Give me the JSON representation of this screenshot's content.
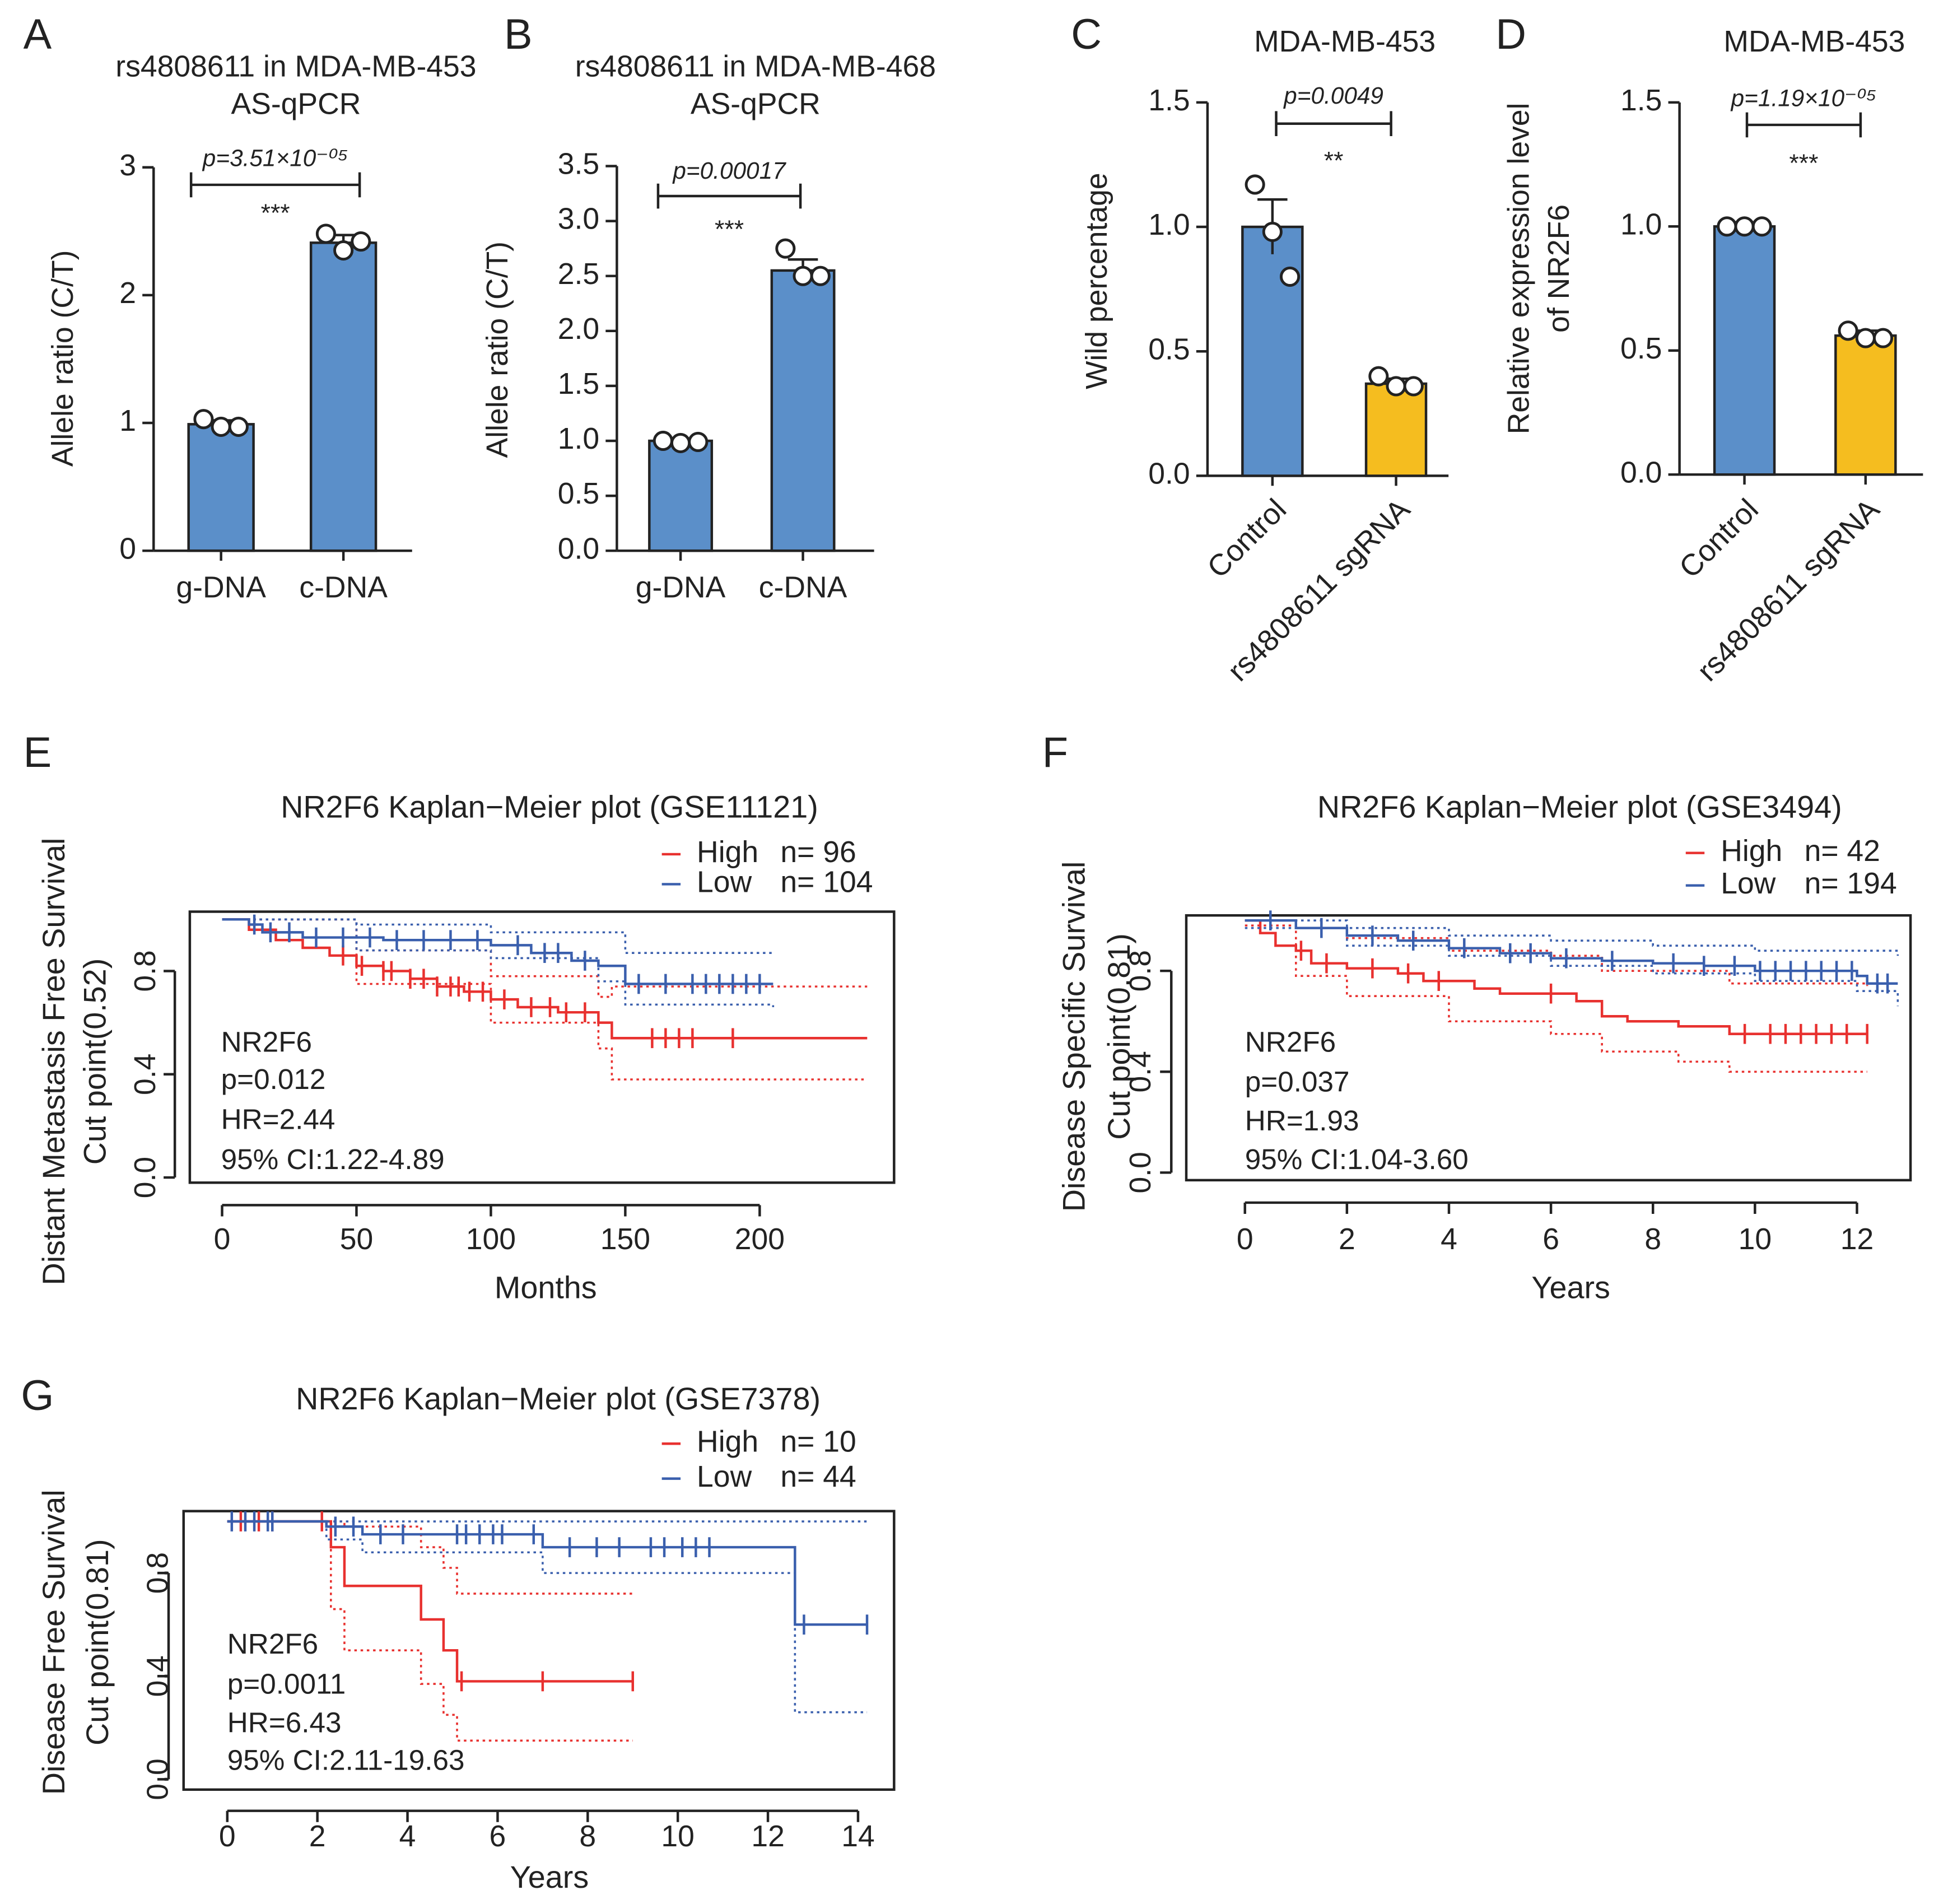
{
  "chart_data": [
    {
      "type": "bar",
      "panel": "A",
      "title": "rs4808611 in MDA-MB-453",
      "subtitle": "AS-qPCR",
      "ylabel": "Allele ratio (C/T)",
      "categories": [
        "g-DNA",
        "c-DNA"
      ],
      "values": [
        0.99,
        2.41
      ],
      "errors": [
        0.03,
        0.06
      ],
      "points": [
        [
          1.03,
          0.97,
          0.97
        ],
        [
          2.48,
          2.35,
          2.42
        ]
      ],
      "colors": [
        "#5b8fc9",
        "#5b8fc9"
      ],
      "ylim": [
        0,
        3
      ],
      "yticks": [
        0,
        1,
        2,
        3
      ],
      "p_label": "p=3.51×10⁻⁰⁵",
      "stars": "***"
    },
    {
      "type": "bar",
      "panel": "B",
      "title": "rs4808611 in MDA-MB-468",
      "subtitle": "AS-qPCR",
      "ylabel": "Allele ratio (C/T)",
      "categories": [
        "g-DNA",
        "c-DNA"
      ],
      "values": [
        1.0,
        2.55
      ],
      "errors": [
        0.02,
        0.1
      ],
      "points": [
        [
          1.0,
          0.98,
          0.99
        ],
        [
          2.75,
          2.5,
          2.5
        ]
      ],
      "colors": [
        "#5b8fc9",
        "#5b8fc9"
      ],
      "ylim": [
        0,
        3.5
      ],
      "yticks": [
        {
          "value": 0,
          "label": "0.0"
        },
        0.5,
        {
          "value": 1,
          "label": "1.0"
        },
        1.5,
        {
          "value": 2,
          "label": "2.0"
        },
        2.5,
        {
          "value": 3,
          "label": "3.0"
        },
        3.5
      ],
      "p_label": "p=0.00017",
      "stars": "***"
    },
    {
      "type": "bar",
      "panel": "C",
      "title": "MDA-MB-453",
      "ylabel": "Wild percentage",
      "categories": [
        "Control",
        "rs4808611 sgRNA"
      ],
      "values": [
        1.0,
        0.37
      ],
      "errors": [
        0.11,
        0.02
      ],
      "points": [
        [
          1.17,
          0.98,
          0.8
        ],
        [
          0.4,
          0.36,
          0.36
        ]
      ],
      "colors": [
        "#5b8fc9",
        "#f5bd1f"
      ],
      "ylim": [
        0,
        1.5
      ],
      "yticks": [
        {
          "value": 0,
          "label": "0.0"
        },
        0.5,
        {
          "value": 1,
          "label": "1.0"
        },
        1.5
      ],
      "p_label": "p=0.0049",
      "stars": "**"
    },
    {
      "type": "bar",
      "panel": "D",
      "title": "MDA-MB-453",
      "ylabel": [
        "Relative expression level",
        "of NR2F6"
      ],
      "categories": [
        "Control",
        "rs4808611 sgRNA"
      ],
      "values": [
        1.0,
        0.56
      ],
      "errors": [
        0.005,
        0.02
      ],
      "points": [
        [
          1.0,
          1.0,
          1.0
        ],
        [
          0.58,
          0.55,
          0.55
        ]
      ],
      "colors": [
        "#5b8fc9",
        "#f5bd1f"
      ],
      "ylim": [
        0,
        1.5
      ],
      "yticks": [
        {
          "value": 0,
          "label": "0.0"
        },
        0.5,
        {
          "value": 1,
          "label": "1.0"
        },
        1.5
      ],
      "p_label": "p=1.19×10⁻⁰⁵",
      "stars": "***"
    },
    {
      "type": "line",
      "panel": "E",
      "title": "NR2F6 Kaplan−Meier plot (GSE11121)",
      "ylabel": [
        "Distant Metastasis Free Survival",
        "Cut point(0.52)"
      ],
      "xlabel": "Months",
      "xlim": [
        -12,
        250
      ],
      "xticks": [
        0,
        50,
        100,
        150,
        200
      ],
      "ylim": [
        -0.02,
        1.03
      ],
      "yticks": [
        {
          "value": 0,
          "label": "0.0"
        },
        0.4,
        0.8
      ],
      "annotations": [
        "NR2F6",
        "p=0.012",
        "HR=2.44",
        "95% CI:1.22-4.89"
      ],
      "series": [
        {
          "name": "High",
          "n_label": "n= 96",
          "color": "#e8312f",
          "x": [
            0,
            10,
            20,
            30,
            40,
            50,
            60,
            70,
            80,
            90,
            100,
            110,
            125,
            140,
            145,
            240
          ],
          "values": [
            1.0,
            0.96,
            0.92,
            0.89,
            0.86,
            0.82,
            0.8,
            0.77,
            0.74,
            0.72,
            0.69,
            0.66,
            0.64,
            0.6,
            0.54,
            0.54
          ],
          "censor": [
            45,
            52,
            60,
            63,
            70,
            75,
            80,
            85,
            88,
            92,
            97,
            105,
            115,
            122,
            128,
            135,
            160,
            165,
            170,
            175,
            190
          ],
          "ci": [
            {
              "x": [
                0,
                50,
                100,
                140,
                145,
                240
              ],
              "values": [
                1.0,
                0.88,
                0.78,
                0.7,
                0.74,
                0.74
              ]
            },
            {
              "x": [
                0,
                50,
                100,
                140,
                145,
                240
              ],
              "values": [
                1.0,
                0.75,
                0.6,
                0.5,
                0.38,
                0.38
              ]
            }
          ]
        },
        {
          "name": "Low",
          "n_label": "n= 104",
          "color": "#3a5fad",
          "x": [
            0,
            10,
            15,
            30,
            60,
            100,
            115,
            130,
            140,
            150,
            205
          ],
          "values": [
            1.0,
            0.98,
            0.95,
            0.93,
            0.92,
            0.9,
            0.87,
            0.84,
            0.82,
            0.75,
            0.75
          ],
          "censor": [
            12,
            18,
            25,
            35,
            45,
            55,
            65,
            75,
            85,
            95,
            110,
            120,
            125,
            135,
            155,
            165,
            175,
            180,
            185,
            190,
            195,
            200
          ],
          "ci": [
            {
              "x": [
                0,
                50,
                100,
                150,
                205
              ],
              "values": [
                1.0,
                0.98,
                0.95,
                0.87,
                0.87
              ]
            },
            {
              "x": [
                0,
                50,
                100,
                140,
                150,
                205
              ],
              "values": [
                1.0,
                0.88,
                0.85,
                0.76,
                0.67,
                0.66
              ]
            }
          ]
        }
      ]
    },
    {
      "type": "line",
      "panel": "F",
      "title": "NR2F6 Kaplan−Meier plot (GSE3494)",
      "ylabel": [
        "Disease Specific Survival",
        "Cut point(0.81)"
      ],
      "xlabel": "Years",
      "xlim": [
        -1.15,
        13.05
      ],
      "xticks": [
        0,
        2,
        4,
        6,
        8,
        10,
        12
      ],
      "ylim": [
        -0.03,
        1.02
      ],
      "yticks": [
        {
          "value": 0,
          "label": "0.0"
        },
        0.4,
        0.8
      ],
      "annotations": [
        "NR2F6",
        "p=0.037",
        "HR=1.93",
        "95% CI:1.04-3.60"
      ],
      "series": [
        {
          "name": "High",
          "n_label": "n= 42",
          "color": "#e8312f",
          "x": [
            0,
            0.3,
            0.6,
            1,
            1.3,
            2,
            3,
            3.5,
            4.5,
            5,
            6.5,
            7,
            7.5,
            8.5,
            9.5,
            12.2
          ],
          "values": [
            1.0,
            0.95,
            0.9,
            0.88,
            0.83,
            0.81,
            0.79,
            0.76,
            0.73,
            0.71,
            0.68,
            0.62,
            0.6,
            0.58,
            0.55,
            0.55
          ],
          "censor": [
            1.1,
            1.6,
            2.5,
            3.2,
            3.8,
            6,
            9.8,
            10.3,
            10.6,
            10.9,
            11.2,
            11.5,
            11.8,
            12.2
          ],
          "ci": [
            {
              "x": [
                0,
                1,
                2,
                4,
                6,
                7,
                9.5,
                12.2
              ],
              "values": [
                1.0,
                0.97,
                0.93,
                0.88,
                0.86,
                0.8,
                0.75,
                0.74
              ]
            },
            {
              "x": [
                0,
                1,
                2,
                4,
                6,
                7,
                8.5,
                9.5,
                12.2
              ],
              "values": [
                0.98,
                0.78,
                0.7,
                0.6,
                0.55,
                0.48,
                0.44,
                0.4,
                0.4
              ]
            }
          ]
        },
        {
          "name": "Low",
          "n_label": "n= 194",
          "color": "#3a5fad",
          "x": [
            0,
            1,
            2,
            3,
            4,
            5,
            6,
            7,
            8,
            9,
            10,
            12,
            12.2,
            12.8
          ],
          "values": [
            1.0,
            0.97,
            0.94,
            0.92,
            0.89,
            0.87,
            0.85,
            0.84,
            0.83,
            0.82,
            0.8,
            0.78,
            0.75,
            0.75
          ],
          "censor": [
            0.5,
            1.5,
            2.5,
            3.3,
            4.3,
            5.2,
            5.6,
            6.3,
            7.2,
            8.4,
            9,
            9.6,
            10.1,
            10.4,
            10.7,
            11,
            11.3,
            11.6,
            11.9,
            12.4,
            12.6
          ],
          "ci": [
            {
              "x": [
                0,
                2,
                4,
                6,
                8,
                10,
                12.8
              ],
              "values": [
                1.0,
                0.97,
                0.94,
                0.92,
                0.9,
                0.88,
                0.86
              ]
            },
            {
              "x": [
                0,
                2,
                4,
                6,
                8,
                10,
                12,
                12.8
              ],
              "values": [
                0.97,
                0.9,
                0.86,
                0.82,
                0.79,
                0.76,
                0.72,
                0.66
              ]
            }
          ]
        }
      ]
    },
    {
      "type": "line",
      "panel": "G",
      "title": "NR2F6 Kaplan−Meier plot (GSE7378)",
      "ylabel": [
        "Disease Free Survival",
        "Cut point(0.81)"
      ],
      "xlabel": "Years",
      "xlim": [
        -0.97,
        14.8
      ],
      "xticks": [
        0,
        2,
        4,
        6,
        8,
        10,
        12,
        14
      ],
      "ylim": [
        -0.04,
        1.04
      ],
      "yticks": [
        {
          "value": 0,
          "label": "0.0"
        },
        0.4,
        0.8
      ],
      "annotations": [
        "NR2F6",
        "p=0.0011",
        "HR=6.43",
        "95% CI:2.11-19.63"
      ],
      "series": [
        {
          "name": "High",
          "n_label": "n= 10",
          "color": "#e8312f",
          "x": [
            0,
            2.3,
            2.6,
            4.3,
            4.8,
            5.1,
            9
          ],
          "values": [
            1.0,
            0.9,
            0.75,
            0.62,
            0.5,
            0.38,
            0.38
          ],
          "censor": [
            0.3,
            0.7,
            1.0,
            2.1,
            5.2,
            7,
            9
          ],
          "ci": [
            {
              "x": [
                0,
                2.3,
                2.6,
                4.3,
                4.8,
                5.1,
                9
              ],
              "values": [
                1.0,
                1.0,
                0.98,
                0.9,
                0.82,
                0.72,
                0.72
              ]
            },
            {
              "x": [
                0,
                2.3,
                2.6,
                4.3,
                4.8,
                5.1,
                9
              ],
              "values": [
                1.0,
                0.66,
                0.5,
                0.37,
                0.25,
                0.15,
                0.15
              ]
            }
          ]
        },
        {
          "name": "Low",
          "n_label": "n= 44",
          "color": "#3a5fad",
          "x": [
            0,
            2.2,
            3,
            7,
            12.6,
            14.2
          ],
          "values": [
            1.0,
            0.98,
            0.95,
            0.9,
            0.6,
            0.6
          ],
          "censor": [
            0.1,
            0.4,
            0.6,
            0.9,
            1.0,
            2.4,
            2.8,
            3.4,
            3.9,
            5.1,
            5.3,
            5.6,
            5.9,
            6.1,
            6.8,
            7.6,
            8.2,
            8.7,
            9.4,
            9.7,
            10.1,
            10.4,
            10.7,
            12.8,
            14.2
          ],
          "ci": [
            {
              "x": [
                0,
                14.2
              ],
              "values": [
                1.0,
                1.0
              ]
            },
            {
              "x": [
                0,
                2.2,
                3,
                7,
                12.6,
                14.2
              ],
              "values": [
                1.0,
                0.93,
                0.88,
                0.8,
                0.26,
                0.26
              ]
            }
          ]
        }
      ]
    }
  ]
}
